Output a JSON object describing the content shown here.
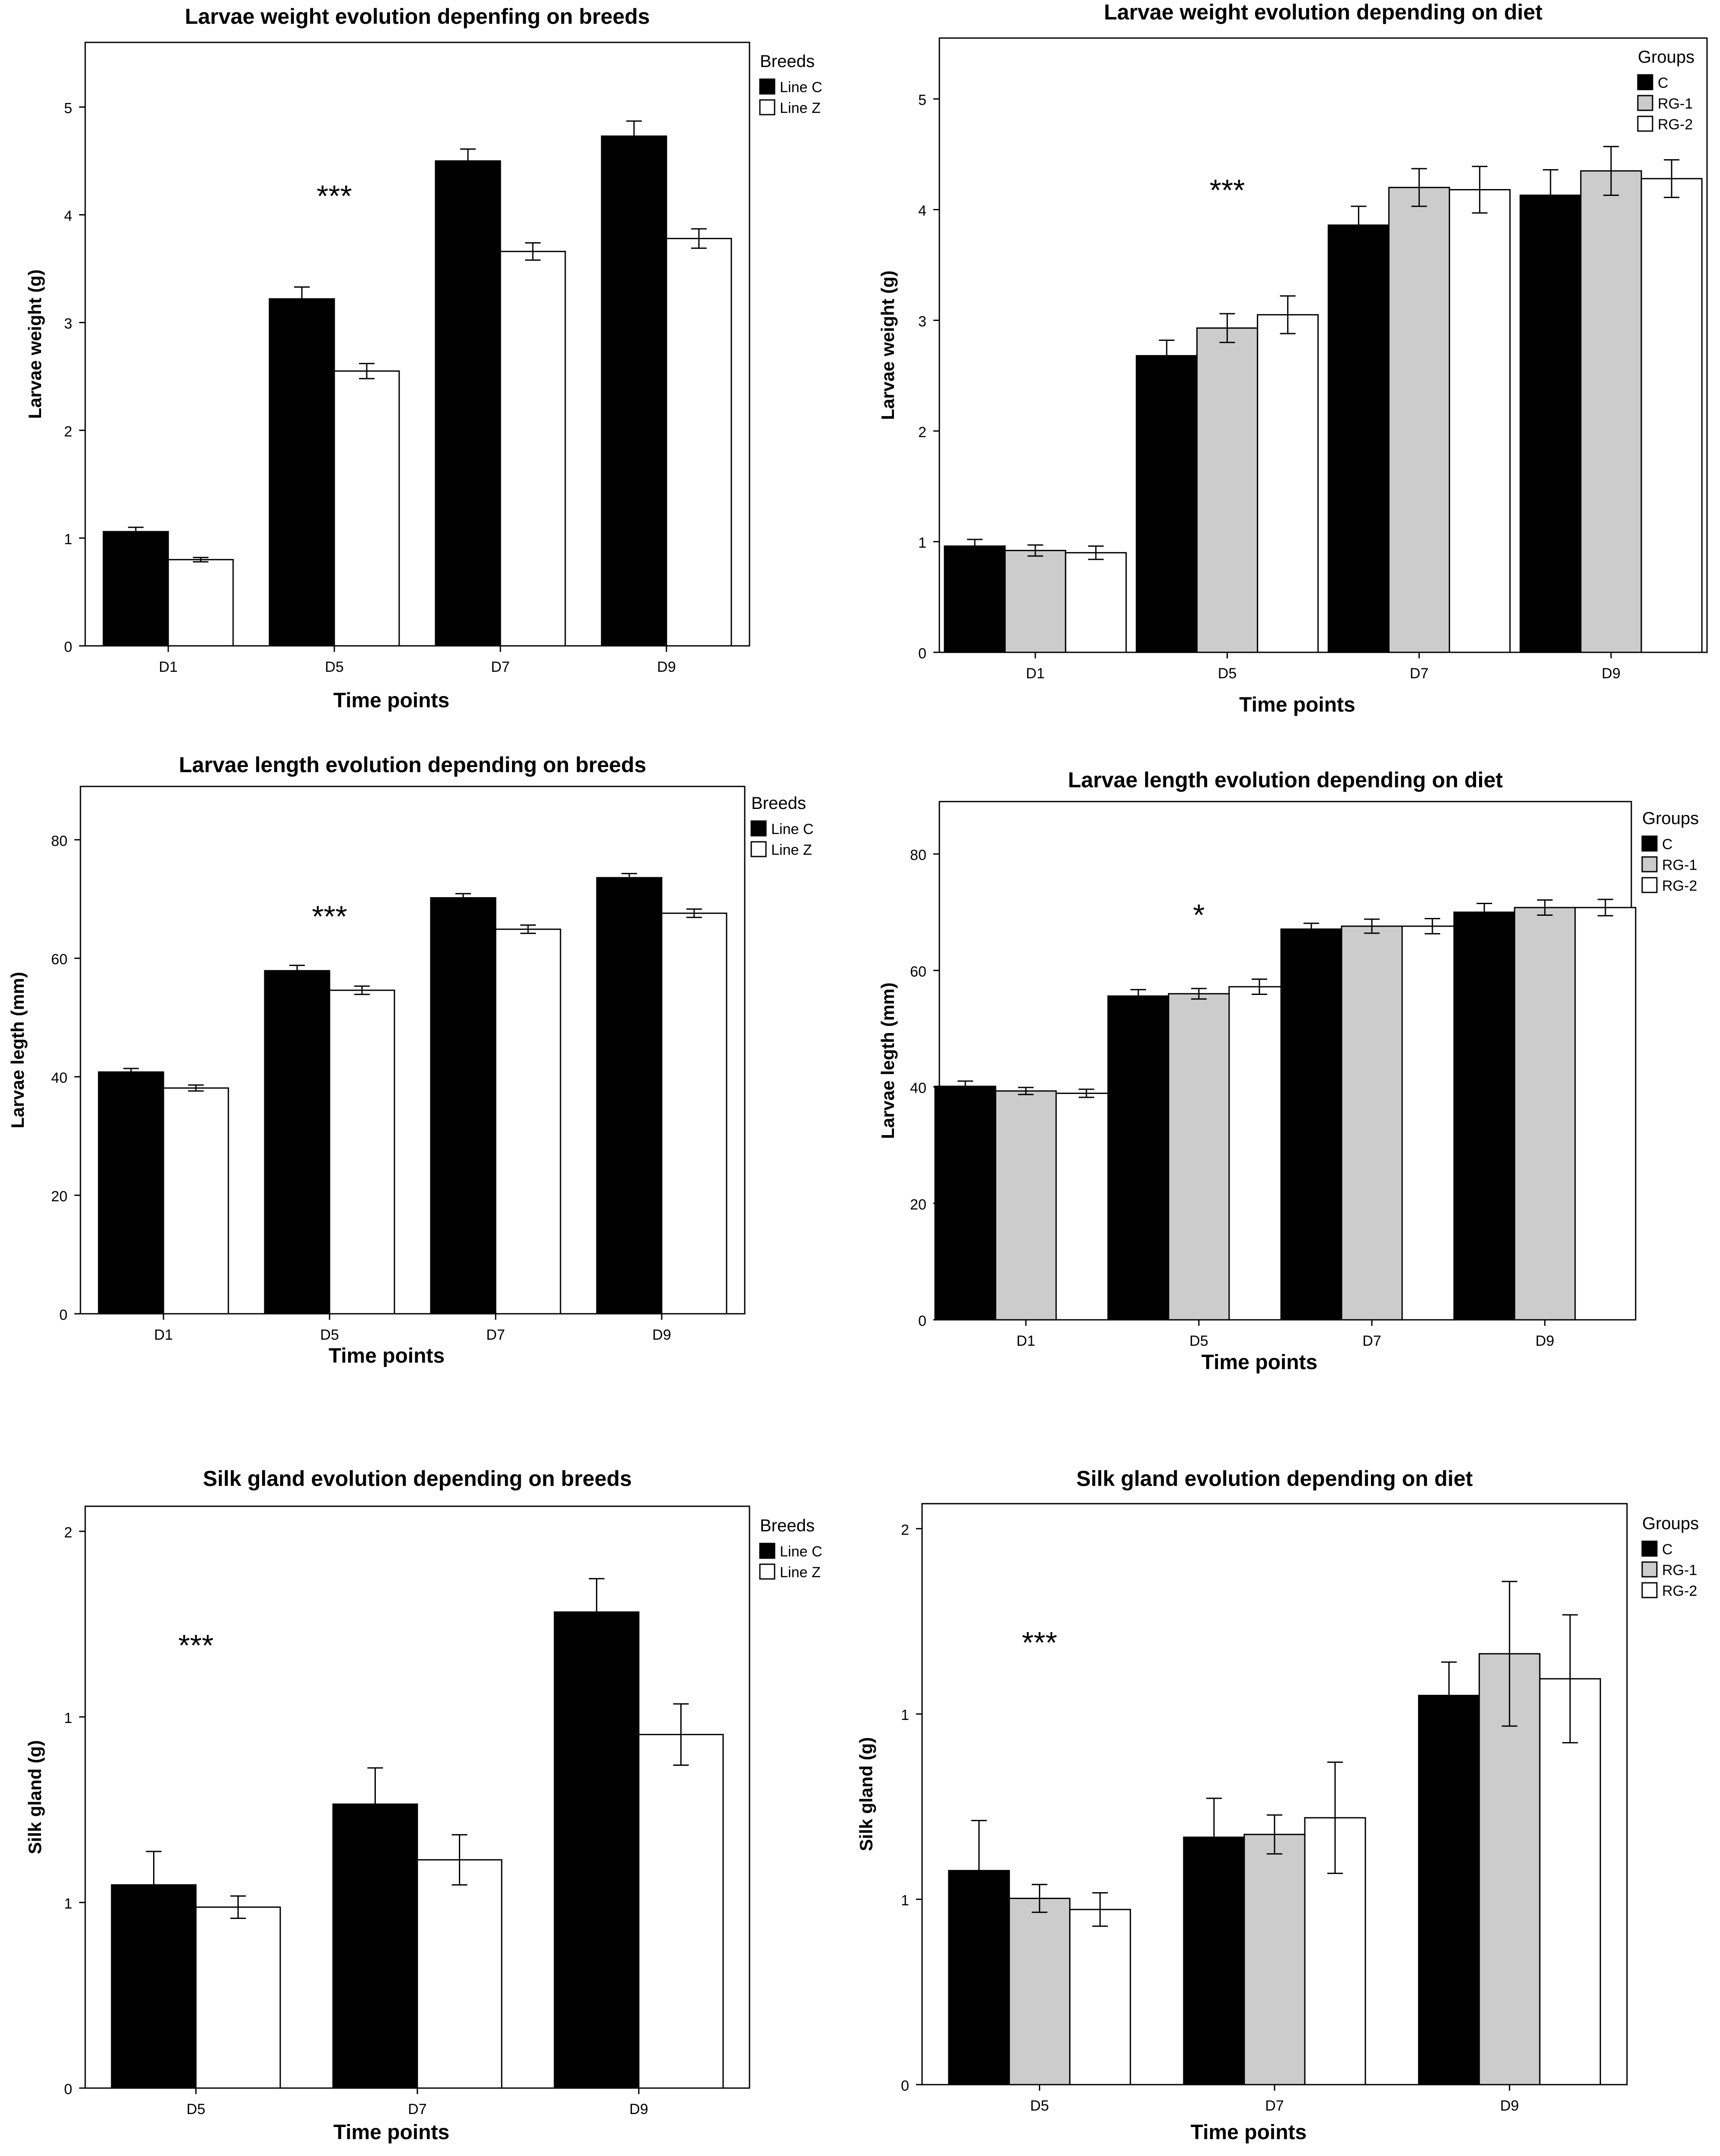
{
  "chart_data": [
    {
      "type": "bar",
      "title": "Larvae weight evolution depenfing on breeds",
      "xlabel": "Time points",
      "ylabel": "Larvae weight (g)",
      "categories": [
        "D1",
        "D5",
        "D7",
        "D9"
      ],
      "ylim": [
        0,
        5.6
      ],
      "yticks": [
        0,
        1,
        2,
        3,
        4,
        5
      ],
      "ytick_labels": [
        "0",
        "1",
        "2",
        "3",
        "4",
        "5"
      ],
      "legend": {
        "title": "Breeds",
        "position": "top-right"
      },
      "significance": "***",
      "significance_at": [
        "D5",
        4.2
      ],
      "series": [
        {
          "name": "Line C",
          "color": "#000000",
          "values": [
            1.06,
            3.22,
            4.5,
            4.73
          ],
          "errors": [
            0.04,
            0.11,
            0.11,
            0.14
          ]
        },
        {
          "name": "Line Z",
          "color": "#ffffff",
          "values": [
            0.8,
            2.55,
            3.66,
            3.78
          ],
          "errors": [
            0.02,
            0.07,
            0.08,
            0.09
          ]
        }
      ]
    },
    {
      "type": "bar",
      "title": "Larvae weight evolution depending on diet",
      "xlabel": "Time points",
      "ylabel": "Larvae weight (g)",
      "categories": [
        "D1",
        "D5",
        "D7",
        "D9"
      ],
      "ylim": [
        0,
        5.55
      ],
      "yticks": [
        0,
        1,
        2,
        3,
        4,
        5
      ],
      "ytick_labels": [
        "0",
        "1",
        "2",
        "3",
        "4",
        "5"
      ],
      "legend": {
        "title": "Groups",
        "position": "top-right"
      },
      "significance": "***",
      "significance_at": [
        "D5",
        4.2
      ],
      "series": [
        {
          "name": "C",
          "color": "#000000",
          "values": [
            0.96,
            2.68,
            3.86,
            4.13
          ],
          "errors": [
            0.06,
            0.14,
            0.17,
            0.23
          ]
        },
        {
          "name": "RG-1",
          "color": "#cccccc",
          "values": [
            0.92,
            2.93,
            4.2,
            4.35
          ],
          "errors": [
            0.05,
            0.13,
            0.17,
            0.22
          ]
        },
        {
          "name": "RG-2",
          "color": "#ffffff",
          "values": [
            0.9,
            3.05,
            4.18,
            4.28
          ],
          "errors": [
            0.06,
            0.17,
            0.21,
            0.17
          ]
        }
      ]
    },
    {
      "type": "bar",
      "title": "Larvae length evolution depending on breeds",
      "xlabel": "Time points",
      "ylabel": "Larvae legth  (mm)",
      "categories": [
        "D1",
        "D5",
        "D7",
        "D9"
      ],
      "ylim": [
        0,
        89
      ],
      "yticks": [
        0,
        20,
        40,
        60,
        80
      ],
      "ytick_labels": [
        "0",
        "20",
        "40",
        "60",
        "80"
      ],
      "legend": {
        "title": "Breeds",
        "position": "top-right"
      },
      "significance": "***",
      "significance_at": [
        "D5",
        67.5
      ],
      "series": [
        {
          "name": "Line C",
          "color": "#000000",
          "values": [
            40.8,
            57.9,
            70.2,
            73.6
          ],
          "errors": [
            0.6,
            0.9,
            0.7,
            0.7
          ]
        },
        {
          "name": "Line Z",
          "color": "#ffffff",
          "values": [
            38.1,
            54.6,
            64.9,
            67.6
          ],
          "errors": [
            0.5,
            0.7,
            0.7,
            0.7
          ]
        }
      ]
    },
    {
      "type": "bar",
      "title": "Larvae length  evolution depending on diet",
      "xlabel": "Time points",
      "ylabel": "Larvae legth  (mm)",
      "categories": [
        "D1",
        "D5",
        "D7",
        "D9"
      ],
      "ylim": [
        0,
        89
      ],
      "yticks": [
        0,
        20,
        40,
        60,
        80
      ],
      "ytick_labels": [
        "0",
        "20",
        "40",
        "60",
        "80"
      ],
      "legend": {
        "title": "Groups",
        "position": "top-right"
      },
      "significance": "*",
      "significance_at": [
        "D5",
        70
      ],
      "series": [
        {
          "name": "C",
          "color": "#000000",
          "values": [
            40.1,
            55.6,
            67.1,
            70.0
          ],
          "errors": [
            0.9,
            1.1,
            1.0,
            1.5
          ]
        },
        {
          "name": "RG-1",
          "color": "#cccccc",
          "values": [
            39.3,
            56.0,
            67.6,
            70.8
          ],
          "errors": [
            0.6,
            0.9,
            1.2,
            1.3
          ]
        },
        {
          "name": "RG-2",
          "color": "#ffffff",
          "values": [
            38.9,
            57.2,
            67.6,
            70.8
          ],
          "errors": [
            0.7,
            1.3,
            1.3,
            1.4
          ]
        }
      ]
    },
    {
      "type": "bar",
      "title": "Silk gland evolution depending on breeds",
      "xlabel": "Time points",
      "ylabel": "Silk gland (g)",
      "categories": [
        "D5",
        "D7",
        "D9"
      ],
      "ylim": [
        0,
        2.09
      ],
      "yticks": [
        0,
        0.6667,
        1.3333,
        2
      ],
      "ytick_labels": [
        "0",
        "1",
        "1",
        "2"
      ],
      "legend": {
        "title": "Breeds",
        "position": "top-right"
      },
      "significance": "***",
      "significance_at": [
        "D5",
        1.6
      ],
      "series": [
        {
          "name": "Line C",
          "color": "#000000",
          "values": [
            0.73,
            1.02,
            1.71
          ],
          "errors": [
            0.12,
            0.13,
            0.12
          ]
        },
        {
          "name": "Line Z",
          "color": "#ffffff",
          "values": [
            0.65,
            0.82,
            1.27
          ],
          "errors": [
            0.04,
            0.09,
            0.11
          ]
        }
      ]
    },
    {
      "type": "bar",
      "title": "Silk gland evolution depending on diet",
      "xlabel": "Time points",
      "ylabel": "Silk gland (g)",
      "categories": [
        "D5",
        "D7",
        "D9"
      ],
      "ylim": [
        0,
        2.09
      ],
      "yticks": [
        0,
        0.6667,
        1.3333,
        2
      ],
      "ytick_labels": [
        "0",
        "1",
        "1",
        "2"
      ],
      "legend": {
        "title": "Groups",
        "position": "top-right"
      },
      "significance": "***",
      "significance_at": [
        "D5",
        1.6
      ],
      "series": [
        {
          "name": "C",
          "color": "#000000",
          "values": [
            0.77,
            0.89,
            1.4
          ],
          "errors": [
            0.18,
            0.14,
            0.12
          ]
        },
        {
          "name": "RG-1",
          "color": "#cccccc",
          "values": [
            0.67,
            0.9,
            1.55
          ],
          "errors": [
            0.05,
            0.07,
            0.26
          ]
        },
        {
          "name": "RG-2",
          "color": "#ffffff",
          "values": [
            0.63,
            0.96,
            1.46
          ],
          "errors": [
            0.06,
            0.2,
            0.23
          ]
        }
      ]
    }
  ]
}
